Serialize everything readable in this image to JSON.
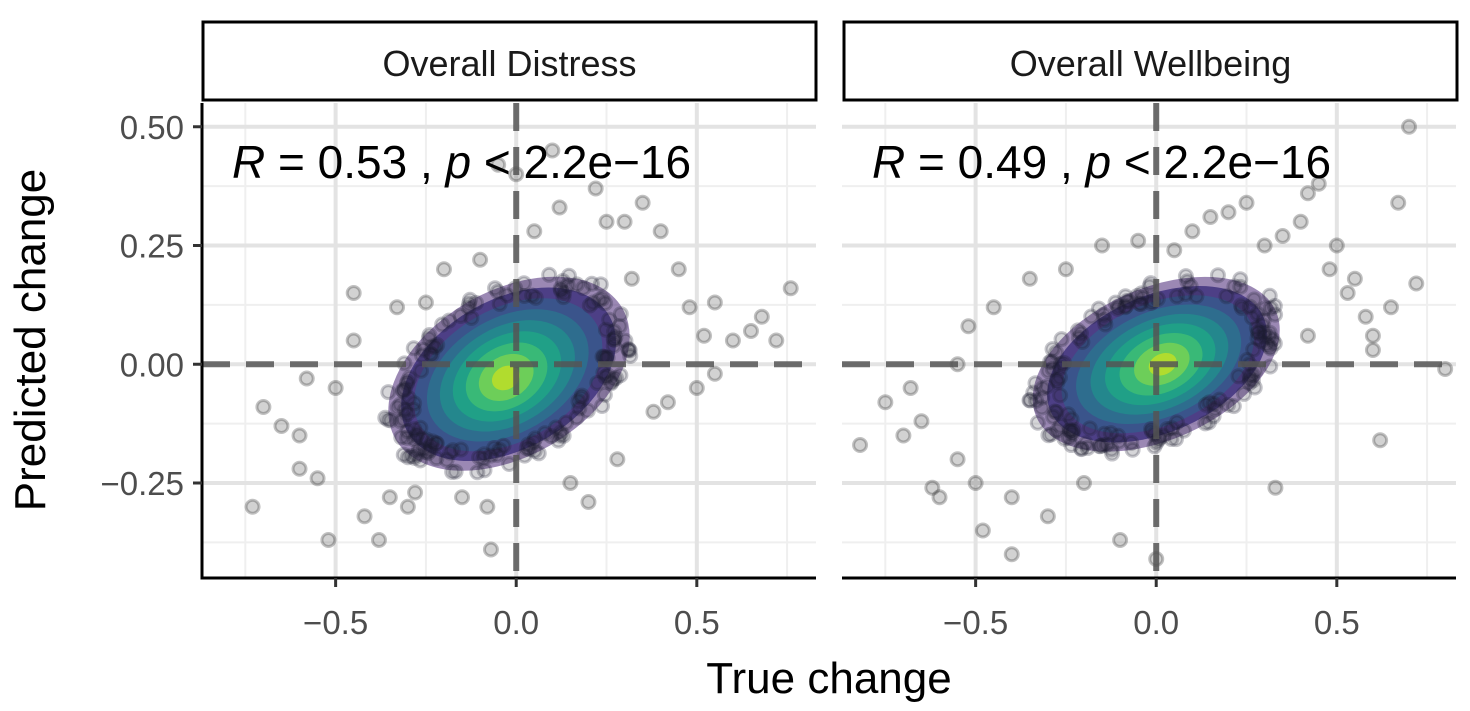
{
  "chart_data": {
    "type": "scatter",
    "xlabel": "True change",
    "ylabel": "Predicted change",
    "xlim": [
      -0.87,
      0.83
    ],
    "ylim": [
      -0.45,
      0.55
    ],
    "x_ticks": [
      -0.5,
      0.0,
      0.5
    ],
    "x_tick_labels": [
      "−0.5",
      "0.0",
      "0.5"
    ],
    "y_ticks": [
      -0.25,
      0.0,
      0.25,
      0.5
    ],
    "y_tick_labels": [
      "−0.25",
      "0.00",
      "0.25",
      "0.50"
    ],
    "grid": true,
    "reference_lines": {
      "x": 0,
      "y": 0,
      "style": "dashed"
    },
    "density_colors": [
      "#482677",
      "#453781",
      "#39568c",
      "#2d708e",
      "#238a8d",
      "#20a386",
      "#3cbb75",
      "#73d055",
      "#b8de29"
    ],
    "point_color": "#333333",
    "panels": [
      {
        "strip_label": "Overall Distress",
        "stat": {
          "r_symbol": "R",
          "r_value": "= 0.53 ,",
          "p_symbol": "p",
          "p_value": "< 2.2e−16"
        },
        "correlation": 0.53,
        "center": [
          -0.02,
          -0.02
        ],
        "spread": [
          0.25,
          0.12
        ],
        "highlight": [
          -0.03,
          -0.03
        ],
        "points": [
          [
            -0.73,
            -0.3
          ],
          [
            -0.7,
            -0.09
          ],
          [
            -0.65,
            -0.13
          ],
          [
            -0.6,
            -0.22
          ],
          [
            -0.55,
            -0.24
          ],
          [
            -0.52,
            -0.37
          ],
          [
            -0.5,
            -0.05
          ],
          [
            -0.45,
            0.15
          ],
          [
            -0.42,
            -0.32
          ],
          [
            -0.38,
            -0.37
          ],
          [
            -0.35,
            -0.28
          ],
          [
            -0.33,
            0.12
          ],
          [
            -0.3,
            -0.3
          ],
          [
            -0.28,
            -0.27
          ],
          [
            -0.25,
            0.13
          ],
          [
            -0.2,
            0.2
          ],
          [
            -0.15,
            -0.28
          ],
          [
            -0.1,
            0.22
          ],
          [
            -0.08,
            -0.3
          ],
          [
            -0.07,
            -0.39
          ],
          [
            -0.05,
            0.42
          ],
          [
            0.0,
            0.4
          ],
          [
            0.05,
            0.28
          ],
          [
            0.1,
            0.45
          ],
          [
            0.12,
            0.33
          ],
          [
            0.15,
            -0.25
          ],
          [
            0.2,
            -0.29
          ],
          [
            0.22,
            0.37
          ],
          [
            0.25,
            0.3
          ],
          [
            0.28,
            -0.2
          ],
          [
            0.3,
            0.3
          ],
          [
            0.35,
            0.34
          ],
          [
            0.38,
            -0.1
          ],
          [
            0.4,
            0.28
          ],
          [
            0.42,
            -0.08
          ],
          [
            0.45,
            0.2
          ],
          [
            0.48,
            0.12
          ],
          [
            0.5,
            -0.05
          ],
          [
            0.52,
            0.06
          ],
          [
            0.55,
            0.13
          ],
          [
            0.6,
            0.05
          ],
          [
            0.65,
            0.07
          ],
          [
            0.68,
            0.1
          ],
          [
            0.72,
            0.05
          ],
          [
            0.76,
            0.16
          ],
          [
            0.55,
            -0.02
          ],
          [
            -0.6,
            -0.15
          ],
          [
            -0.58,
            -0.03
          ],
          [
            -0.45,
            0.05
          ],
          [
            0.32,
            0.18
          ]
        ]
      },
      {
        "strip_label": "Overall Wellbeing",
        "stat": {
          "r_symbol": "R",
          "r_value": "= 0.49 ,",
          "p_symbol": "p",
          "p_value": "< 2.2e−16"
        },
        "correlation": 0.49,
        "center": [
          0.0,
          0.0
        ],
        "spread": [
          0.25,
          0.11
        ],
        "highlight": [
          0.02,
          0.0
        ],
        "points": [
          [
            -0.82,
            -0.17
          ],
          [
            -0.75,
            -0.08
          ],
          [
            -0.7,
            -0.15
          ],
          [
            -0.65,
            -0.12
          ],
          [
            -0.62,
            -0.26
          ],
          [
            -0.6,
            -0.28
          ],
          [
            -0.55,
            -0.2
          ],
          [
            -0.52,
            0.08
          ],
          [
            -0.5,
            -0.25
          ],
          [
            -0.48,
            -0.35
          ],
          [
            -0.45,
            0.12
          ],
          [
            -0.4,
            -0.28
          ],
          [
            -0.4,
            -0.4
          ],
          [
            -0.35,
            0.18
          ],
          [
            -0.3,
            -0.32
          ],
          [
            -0.25,
            0.2
          ],
          [
            -0.2,
            -0.25
          ],
          [
            -0.15,
            0.25
          ],
          [
            -0.1,
            -0.37
          ],
          [
            -0.05,
            0.26
          ],
          [
            0.0,
            -0.41
          ],
          [
            0.05,
            0.24
          ],
          [
            0.1,
            0.28
          ],
          [
            0.15,
            0.31
          ],
          [
            0.2,
            0.32
          ],
          [
            0.25,
            0.34
          ],
          [
            0.3,
            0.25
          ],
          [
            0.33,
            -0.26
          ],
          [
            0.35,
            0.27
          ],
          [
            0.4,
            0.3
          ],
          [
            0.42,
            0.36
          ],
          [
            0.45,
            0.38
          ],
          [
            0.48,
            0.2
          ],
          [
            0.5,
            0.25
          ],
          [
            0.53,
            0.15
          ],
          [
            0.55,
            0.18
          ],
          [
            0.58,
            0.1
          ],
          [
            0.6,
            0.06
          ],
          [
            0.62,
            -0.16
          ],
          [
            0.65,
            0.12
          ],
          [
            0.67,
            0.34
          ],
          [
            0.7,
            0.5
          ],
          [
            0.72,
            0.17
          ],
          [
            0.8,
            -0.01
          ],
          [
            -0.55,
            0.0
          ],
          [
            0.42,
            0.06
          ],
          [
            -0.68,
            -0.05
          ],
          [
            0.6,
            0.03
          ]
        ]
      }
    ]
  }
}
